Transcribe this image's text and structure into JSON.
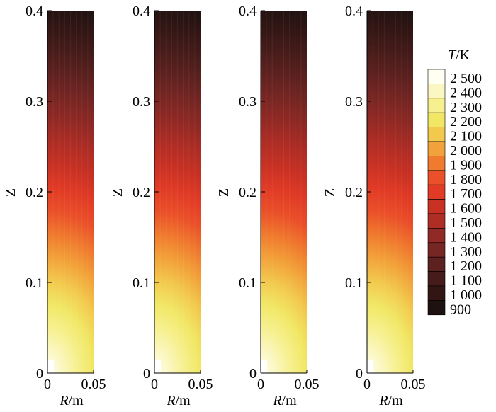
{
  "chart_data": {
    "type": "heatmap",
    "panels": [
      {
        "xlabel_italic": "R",
        "xlabel_unit": "/m",
        "ylabel": "Z",
        "xlim": [
          0,
          0.05
        ],
        "ylim": [
          0,
          0.4
        ],
        "x_ticks": [
          "0",
          "0.05"
        ],
        "y_ticks": [
          "0",
          "0.1",
          "0.2",
          "0.3",
          "0.4"
        ],
        "max_temperature": 2500,
        "min_temperature": 900
      },
      {
        "xlabel_italic": "R",
        "xlabel_unit": "/m",
        "ylabel": "Z",
        "xlim": [
          0,
          0.05
        ],
        "ylim": [
          0,
          0.4
        ],
        "x_ticks": [
          "0",
          "0.05"
        ],
        "y_ticks": [
          "0",
          "0.1",
          "0.2",
          "0.3",
          "0.4"
        ],
        "max_temperature": 2500,
        "min_temperature": 900
      },
      {
        "xlabel_italic": "R",
        "xlabel_unit": "/m",
        "ylabel": "Z",
        "xlim": [
          0,
          0.05
        ],
        "ylim": [
          0,
          0.4
        ],
        "x_ticks": [
          "0",
          "0.05"
        ],
        "y_ticks": [
          "0",
          "0.1",
          "0.2",
          "0.3",
          "0.4"
        ],
        "max_temperature": 2500,
        "min_temperature": 900
      },
      {
        "xlabel_italic": "R",
        "xlabel_unit": "/m",
        "ylabel": "Z",
        "xlim": [
          0,
          0.05
        ],
        "ylim": [
          0,
          0.4
        ],
        "x_ticks": [
          "0",
          "0.05"
        ],
        "y_ticks": [
          "0",
          "0.1",
          "0.2",
          "0.3",
          "0.4"
        ],
        "max_temperature": 2500,
        "min_temperature": 900
      }
    ],
    "legend": {
      "title_italic": "T",
      "title_unit": "/K",
      "placement": "right",
      "levels": [
        {
          "label": "2 500",
          "value": 2500,
          "color": "#fffff2"
        },
        {
          "label": "2 400",
          "value": 2400,
          "color": "#fbf7c2"
        },
        {
          "label": "2 300",
          "value": 2300,
          "color": "#f6f08e"
        },
        {
          "label": "2 200",
          "value": 2200,
          "color": "#f1e765"
        },
        {
          "label": "2 100",
          "value": 2100,
          "color": "#f2c94d"
        },
        {
          "label": "2 000",
          "value": 2000,
          "color": "#f2a23a"
        },
        {
          "label": "1 900",
          "value": 1900,
          "color": "#f07a2e"
        },
        {
          "label": "1 800",
          "value": 1800,
          "color": "#ea5029"
        },
        {
          "label": "1 700",
          "value": 1700,
          "color": "#e13b26"
        },
        {
          "label": "1 600",
          "value": 1600,
          "color": "#c83123"
        },
        {
          "label": "1 500",
          "value": 1500,
          "color": "#ae2d25"
        },
        {
          "label": "1 400",
          "value": 1400,
          "color": "#912924"
        },
        {
          "label": "1 300",
          "value": 1300,
          "color": "#762623"
        },
        {
          "label": "1 200",
          "value": 1200,
          "color": "#5d211f"
        },
        {
          "label": "1 100",
          "value": 1100,
          "color": "#461c1a"
        },
        {
          "label": "1 000",
          "value": 1000,
          "color": "#321614"
        },
        {
          "label": "900",
          "value": 900,
          "color": "#1d1211"
        }
      ]
    }
  }
}
